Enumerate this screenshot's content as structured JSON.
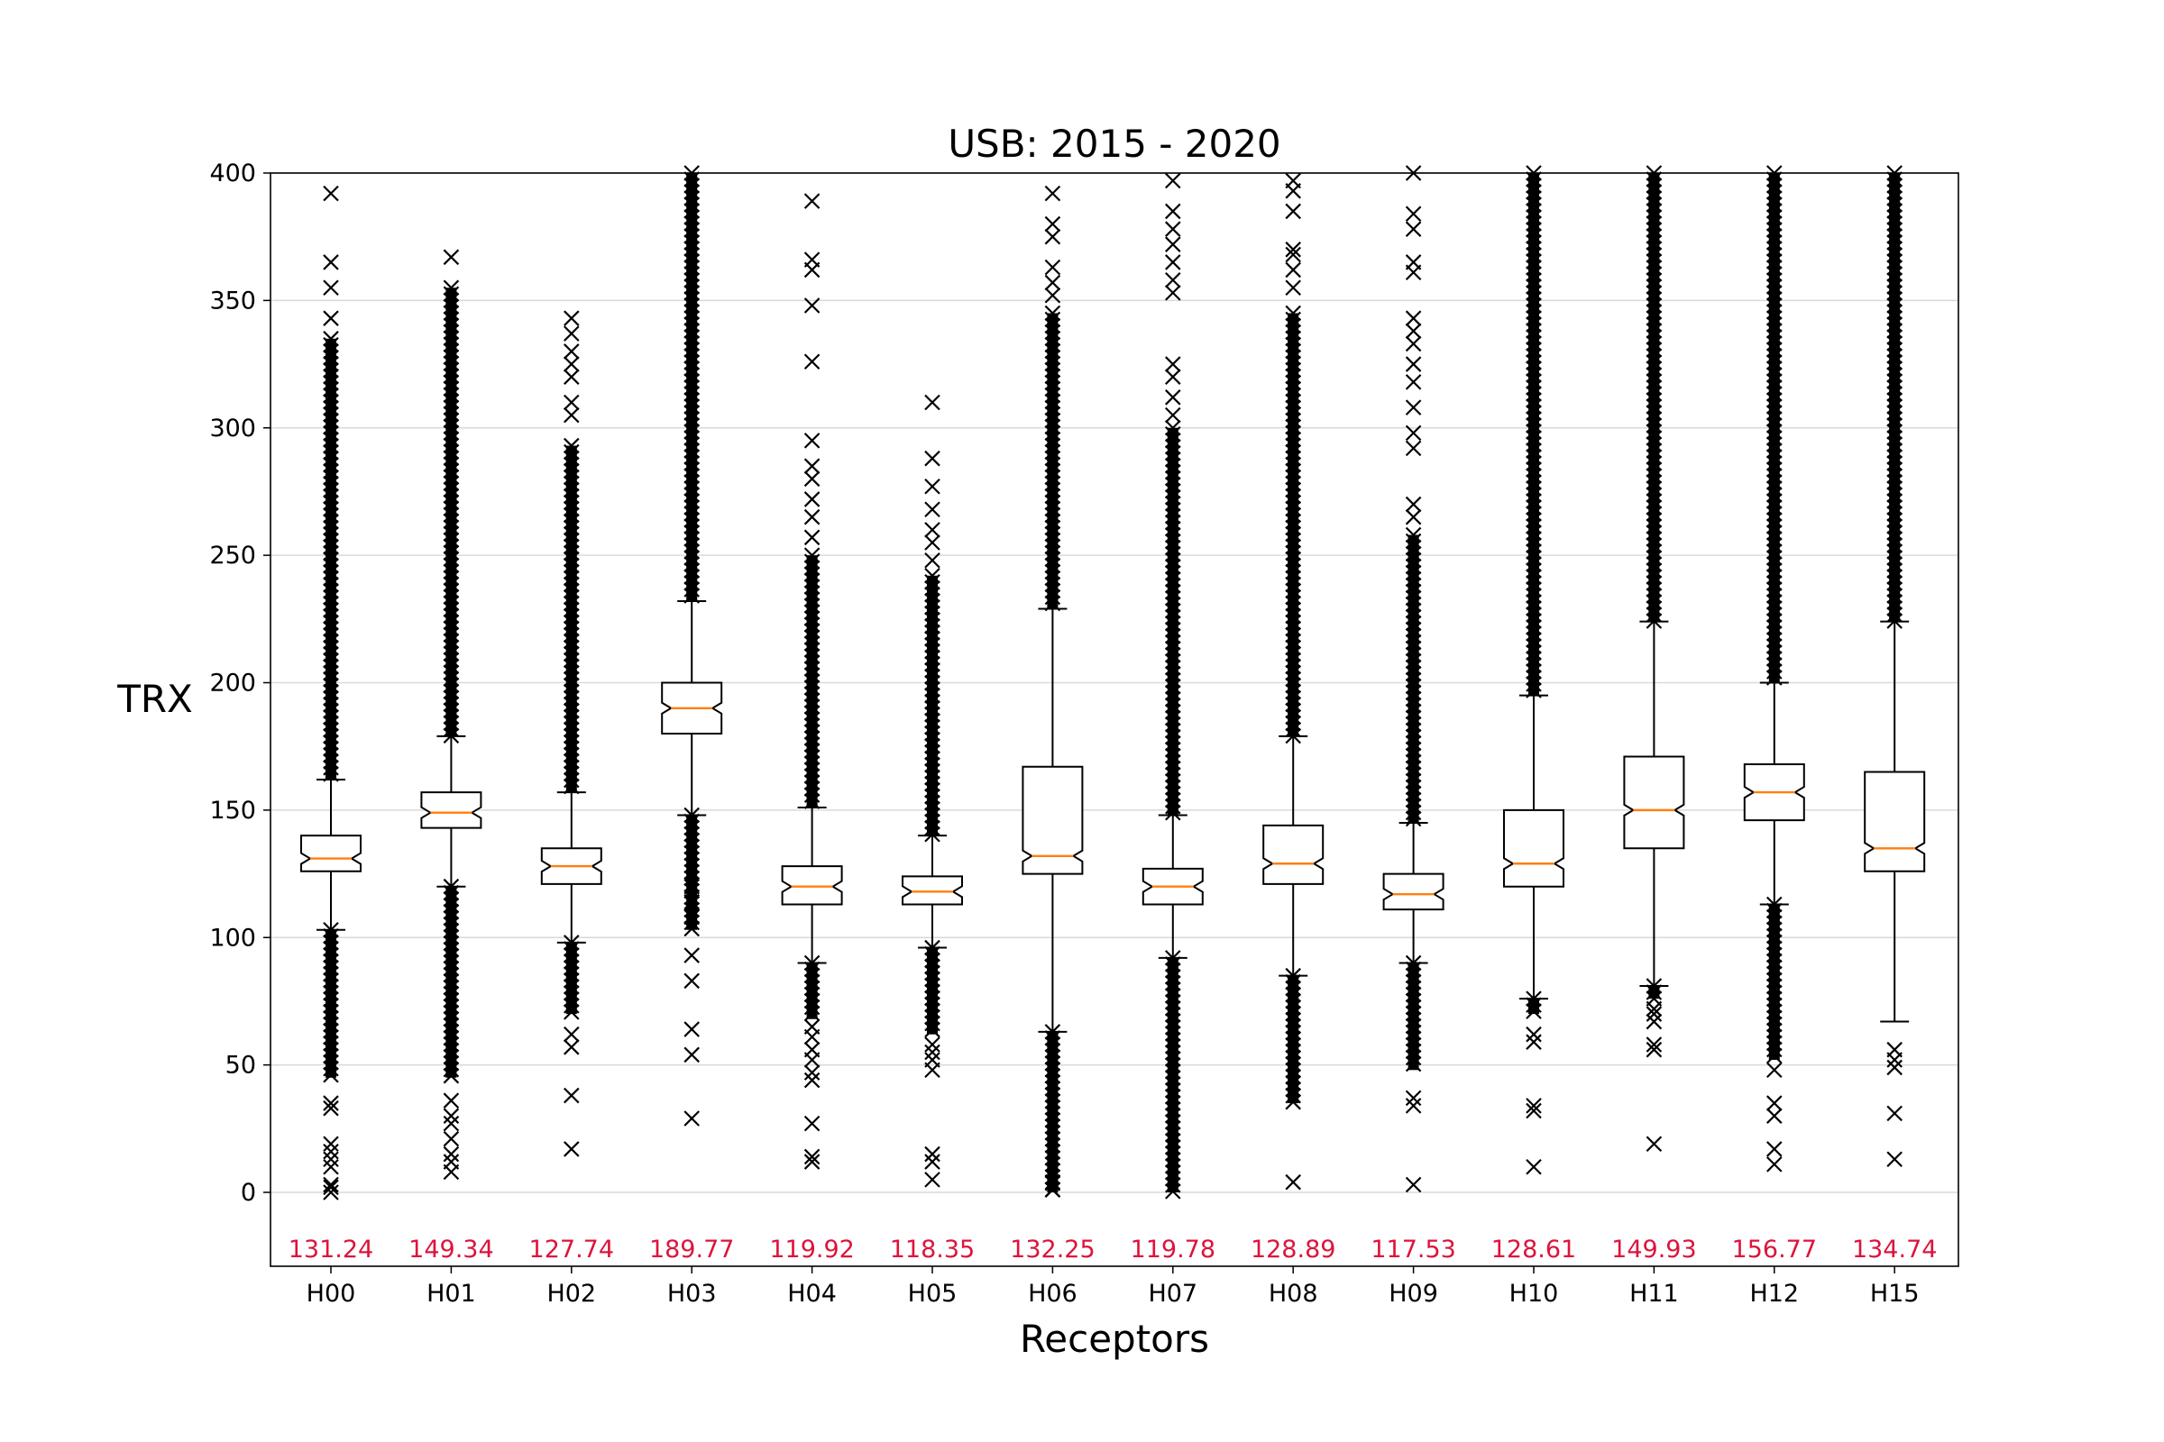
{
  "chart_data": {
    "type": "boxplot",
    "title": "USB: 2015 - 2020",
    "xlabel": "Receptors",
    "ylabel": "TRX",
    "ylim": [
      -30,
      400
    ],
    "yticks": [
      "0",
      "50",
      "100",
      "150",
      "200",
      "250",
      "300",
      "350",
      "400"
    ],
    "grid": "horizontal",
    "colors": {
      "box": "#000000",
      "median": "#ff7f0e",
      "mean_label": "#dc143c",
      "grid": "#d9d9d9"
    },
    "categories": [
      "H00",
      "H01",
      "H02",
      "H03",
      "H04",
      "H05",
      "H06",
      "H07",
      "H08",
      "H09",
      "H10",
      "H11",
      "H12",
      "H15"
    ],
    "mean_labels": [
      "131.24",
      "149.34",
      "127.74",
      "189.77",
      "119.92",
      "118.35",
      "132.25",
      "119.78",
      "128.89",
      "117.53",
      "128.61",
      "149.93",
      "156.77",
      "134.74"
    ],
    "boxes": [
      {
        "name": "H00",
        "whisker_low": 103,
        "q1": 126,
        "median": 131,
        "q3": 140,
        "whisker_high": 162,
        "outliers_low_dense": [
          45,
          103
        ],
        "outliers_high_dense": [
          162,
          335
        ],
        "outliers": [
          0,
          2,
          3,
          10,
          13,
          16,
          19,
          33,
          35,
          343,
          355,
          365,
          392
        ]
      },
      {
        "name": "H01",
        "whisker_low": 120,
        "q1": 143,
        "median": 149,
        "q3": 157,
        "whisker_high": 179,
        "outliers_low_dense": [
          45,
          120
        ],
        "outliers_high_dense": [
          179,
          355
        ],
        "outliers": [
          8,
          12,
          15,
          21,
          27,
          30,
          36,
          367
        ]
      },
      {
        "name": "H02",
        "whisker_low": 98,
        "q1": 121,
        "median": 128,
        "q3": 135,
        "whisker_high": 157,
        "outliers_low_dense": [
          70,
          98
        ],
        "outliers_high_dense": [
          157,
          293
        ],
        "outliers": [
          17,
          38,
          57,
          62,
          305,
          310,
          320,
          325,
          330,
          337,
          343
        ]
      },
      {
        "name": "H03",
        "whisker_low": 148,
        "q1": 180,
        "median": 190,
        "q3": 200,
        "whisker_high": 232,
        "outliers_low_dense": [
          103,
          148
        ],
        "outliers_high_dense": [
          232,
          400
        ],
        "outliers": [
          29,
          54,
          64,
          83,
          93,
          108,
          114,
          120
        ]
      },
      {
        "name": "H04",
        "whisker_low": 90,
        "q1": 113,
        "median": 120,
        "q3": 128,
        "whisker_high": 151,
        "outliers_low_dense": [
          68,
          90
        ],
        "outliers_high_dense": [
          151,
          250
        ],
        "outliers": [
          12,
          14,
          27,
          44,
          47,
          52,
          56,
          61,
          65,
          257,
          265,
          272,
          280,
          285,
          295,
          326,
          348,
          362,
          366,
          389
        ]
      },
      {
        "name": "H05",
        "whisker_low": 96,
        "q1": 113,
        "median": 118,
        "q3": 124,
        "whisker_high": 140,
        "outliers_low_dense": [
          62,
          96
        ],
        "outliers_high_dense": [
          140,
          242
        ],
        "outliers": [
          5,
          12,
          15,
          48,
          52,
          55,
          58,
          248,
          255,
          260,
          268,
          277,
          288,
          310
        ]
      },
      {
        "name": "H06",
        "whisker_low": 63,
        "q1": 125,
        "median": 132,
        "q3": 167,
        "whisker_high": 229,
        "outliers_low_dense": [
          0,
          63
        ],
        "outliers_high_dense": [
          229,
          345
        ],
        "outliers": [
          1,
          4,
          352,
          357,
          363,
          375,
          380,
          392
        ]
      },
      {
        "name": "H07",
        "whisker_low": 92,
        "q1": 113,
        "median": 120,
        "q3": 127,
        "whisker_high": 148,
        "outliers_low_dense": [
          0,
          92
        ],
        "outliers_high_dense": [
          148,
          300
        ],
        "outliers": [
          305,
          312,
          320,
          325,
          353,
          358,
          365,
          372,
          378,
          385,
          397
        ]
      },
      {
        "name": "H08",
        "whisker_low": 85,
        "q1": 121,
        "median": 129,
        "q3": 144,
        "whisker_high": 179,
        "outliers_low_dense": [
          35,
          85
        ],
        "outliers_high_dense": [
          179,
          345
        ],
        "outliers": [
          4,
          355,
          362,
          368,
          370,
          385,
          393,
          397
        ]
      },
      {
        "name": "H09",
        "whisker_low": 90,
        "q1": 111,
        "median": 117,
        "q3": 125,
        "whisker_high": 145,
        "outliers_low_dense": [
          48,
          90
        ],
        "outliers_high_dense": [
          145,
          258
        ],
        "outliers": [
          3,
          34,
          37,
          265,
          270,
          292,
          298,
          308,
          318,
          325,
          333,
          338,
          343,
          361,
          365,
          378,
          384,
          400
        ]
      },
      {
        "name": "H10",
        "whisker_low": 76,
        "q1": 120,
        "median": 129,
        "q3": 150,
        "whisker_high": 195,
        "outliers_low_dense": [
          70,
          76
        ],
        "outliers_high_dense": [
          195,
          400
        ],
        "outliers": [
          10,
          32,
          34,
          59,
          62
        ]
      },
      {
        "name": "H11",
        "whisker_low": 81,
        "q1": 135,
        "median": 150,
        "q3": 171,
        "whisker_high": 224,
        "outliers_low_dense": [
          76,
          81
        ],
        "outliers_high_dense": [
          224,
          400
        ],
        "outliers": [
          19,
          56,
          58,
          67,
          70,
          72
        ]
      },
      {
        "name": "H12",
        "whisker_low": 113,
        "q1": 146,
        "median": 157,
        "q3": 168,
        "whisker_high": 200,
        "outliers_low_dense": [
          52,
          113
        ],
        "outliers_high_dense": [
          200,
          400
        ],
        "outliers": [
          11,
          17,
          30,
          35,
          48
        ]
      },
      {
        "name": "H15",
        "whisker_low": 67,
        "q1": 126,
        "median": 135,
        "q3": 165,
        "whisker_high": 224,
        "outliers_low_dense": [],
        "outliers_high_dense": [
          224,
          400
        ],
        "outliers": [
          13,
          31,
          49,
          52,
          56
        ]
      }
    ]
  }
}
